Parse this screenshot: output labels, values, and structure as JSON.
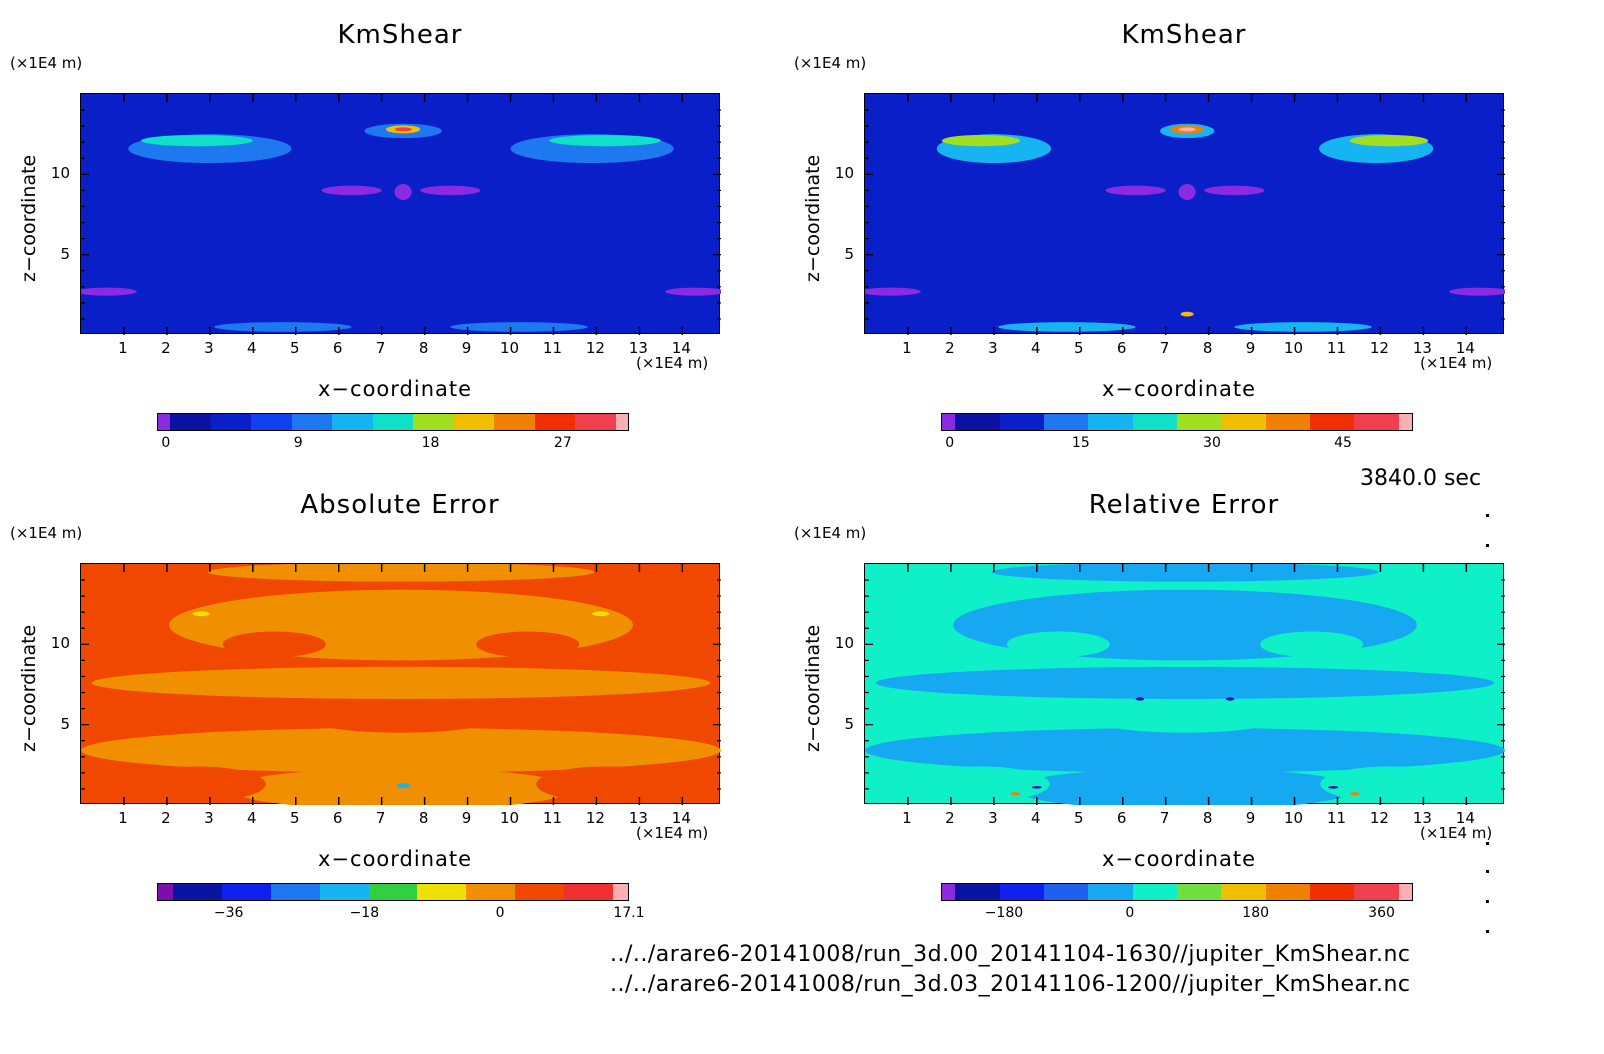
{
  "timestamp": "3840.0 sec",
  "files": [
    "../../arare6-20141008/run_3d.00_20141104-1630//jupiter_KmShear.nc",
    "../../arare6-20141008/run_3d.03_20141106-1200//jupiter_KmShear.nc"
  ],
  "chart_data": [
    {
      "type": "heatmap",
      "title": "KmShear",
      "xlabel": "x−coordinate",
      "ylabel": "z−coordinate",
      "x_unit": "(×1E4 m)",
      "y_unit": "(×1E4 m)",
      "xlim": [
        0,
        14.9
      ],
      "ylim": [
        0,
        15
      ],
      "x_ticks": [
        "1",
        "2",
        "3",
        "4",
        "5",
        "6",
        "7",
        "8",
        "9",
        "10",
        "11",
        "12",
        "13",
        "14"
      ],
      "y_ticks": [
        "5",
        "10"
      ],
      "background_color": "#0a1fc8",
      "colorbar": {
        "colors": [
          "#8a2be2",
          "#0a14a0",
          "#0a1fc8",
          "#1040f0",
          "#1e78f0",
          "#16b4f0",
          "#10e0c8",
          "#a0e020",
          "#f0c000",
          "#f08000",
          "#f03000",
          "#f04050",
          "#f8b0b0"
        ],
        "ticks": [
          "0",
          "9",
          "18",
          "27"
        ],
        "tick_values": [
          0,
          9,
          18,
          27
        ],
        "range": [
          -0.6,
          31.5
        ]
      }
    },
    {
      "type": "heatmap",
      "title": "KmShear",
      "xlabel": "x−coordinate",
      "ylabel": "z−coordinate",
      "x_unit": "(×1E4 m)",
      "y_unit": "(×1E4 m)",
      "xlim": [
        0,
        14.9
      ],
      "ylim": [
        0,
        15
      ],
      "x_ticks": [
        "1",
        "2",
        "3",
        "4",
        "5",
        "6",
        "7",
        "8",
        "9",
        "10",
        "11",
        "12",
        "13",
        "14"
      ],
      "y_ticks": [
        "5",
        "10"
      ],
      "background_color": "#0a1fc8",
      "colorbar": {
        "colors": [
          "#8a2be2",
          "#0a14a0",
          "#0a1fc8",
          "#1e78f0",
          "#16b4f0",
          "#10e0c8",
          "#a0e020",
          "#f0c000",
          "#f08000",
          "#f03000",
          "#f04050",
          "#f8b0b0"
        ],
        "ticks": [
          "0",
          "15",
          "30",
          "45"
        ],
        "tick_values": [
          0,
          15,
          30,
          45
        ],
        "range": [
          -1,
          53
        ]
      }
    },
    {
      "type": "heatmap",
      "title": "Absolute Error",
      "xlabel": "x−coordinate",
      "ylabel": "z−coordinate",
      "x_unit": "(×1E4 m)",
      "y_unit": "(×1E4 m)",
      "xlim": [
        0,
        14.9
      ],
      "ylim": [
        0,
        15
      ],
      "x_ticks": [
        "1",
        "2",
        "3",
        "4",
        "5",
        "6",
        "7",
        "8",
        "9",
        "10",
        "11",
        "12",
        "13",
        "14"
      ],
      "y_ticks": [
        "5",
        "10"
      ],
      "background_color": "#f04800",
      "colorbar": {
        "colors": [
          "#7a10a8",
          "#0a14a0",
          "#1020f0",
          "#1e78f0",
          "#16b4f0",
          "#30d040",
          "#f0e000",
          "#f09000",
          "#f04800",
          "#f03030",
          "#f8b0b0"
        ],
        "ticks": [
          "−36",
          "−18",
          "0",
          "17.1"
        ],
        "tick_values": [
          -36,
          -18,
          0,
          17.1
        ],
        "range": [
          -45.5,
          17.1
        ]
      }
    },
    {
      "type": "heatmap",
      "title": "Relative Error",
      "xlabel": "x−coordinate",
      "ylabel": "z−coordinate",
      "x_unit": "(×1E4 m)",
      "y_unit": "(×1E4 m)",
      "xlim": [
        0,
        14.9
      ],
      "ylim": [
        0,
        15
      ],
      "x_ticks": [
        "1",
        "2",
        "3",
        "4",
        "5",
        "6",
        "7",
        "8",
        "9",
        "10",
        "11",
        "12",
        "13",
        "14"
      ],
      "y_ticks": [
        "5",
        "10"
      ],
      "background_color": "#10f0c8",
      "colorbar": {
        "colors": [
          "#8a2be2",
          "#0a14a0",
          "#1020f0",
          "#1e60f0",
          "#16a8f0",
          "#10f0c8",
          "#70e040",
          "#f0c000",
          "#f08000",
          "#f03000",
          "#f04050",
          "#f8b0b0"
        ],
        "ticks": [
          "−180",
          "0",
          "180",
          "360"
        ],
        "tick_values": [
          -180,
          0,
          180,
          360
        ],
        "range": [
          -270,
          405
        ]
      }
    }
  ]
}
